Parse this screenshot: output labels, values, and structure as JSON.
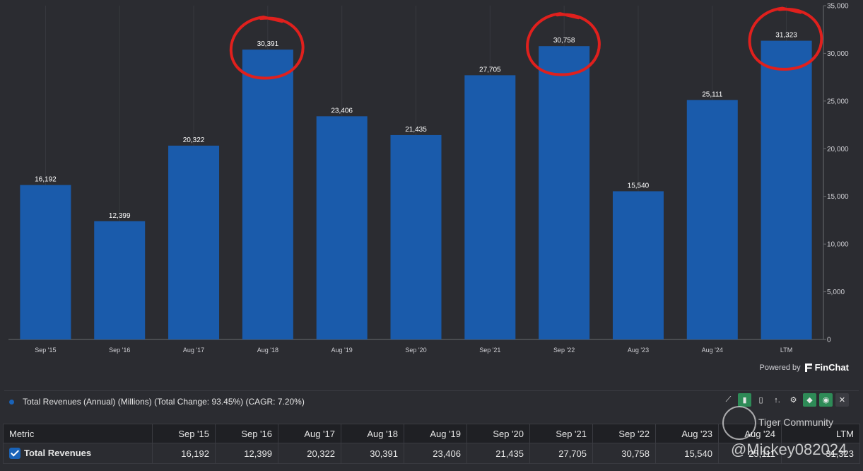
{
  "chart_data": {
    "type": "bar",
    "categories": [
      "Sep '15",
      "Sep '16",
      "Aug '17",
      "Aug '18",
      "Aug '19",
      "Sep '20",
      "Sep '21",
      "Sep '22",
      "Aug '23",
      "Aug '24",
      "LTM"
    ],
    "values": [
      16192,
      12399,
      20322,
      30391,
      23406,
      21435,
      27705,
      30758,
      15540,
      25111,
      31323
    ],
    "value_labels": [
      "16,192",
      "12,399",
      "20,322",
      "30,391",
      "23,406",
      "21,435",
      "27,705",
      "30,758",
      "15,540",
      "25,111",
      "31,323"
    ],
    "ylim": [
      0,
      35000
    ],
    "yticks": [
      0,
      5000,
      10000,
      15000,
      20000,
      25000,
      30000,
      35000
    ],
    "ytick_labels": [
      "0",
      "5,000",
      "10,000",
      "15,000",
      "20,000",
      "25,000",
      "30,000",
      "35,000"
    ],
    "y_axis_side": "right",
    "grid": "vertical",
    "bar_color": "#1a5bab",
    "highlighted_categories": [
      "Aug '18",
      "Sep '22",
      "LTM"
    ],
    "annotation_color": "#e0201d"
  },
  "powered_by": {
    "prefix": "Powered by",
    "brand": "FinChat"
  },
  "legend": {
    "label": "Total Revenues (Annual) (Millions) (Total Change: 93.45%) (CAGR: 7.20%)",
    "color": "#1a63b8"
  },
  "toolbar": [
    {
      "name": "line-chart-icon",
      "glyph": "⟋"
    },
    {
      "name": "bar-chart-icon",
      "glyph": "▮",
      "active": true
    },
    {
      "name": "grouped-bar-icon",
      "glyph": "▯"
    },
    {
      "name": "sort-icon",
      "glyph": "↑."
    },
    {
      "name": "gear-icon",
      "glyph": "⚙"
    },
    {
      "name": "tag-icon",
      "glyph": "◆",
      "active": true
    },
    {
      "name": "eye-icon",
      "glyph": "◉",
      "active": true
    },
    {
      "name": "close-icon",
      "glyph": "✕"
    }
  ],
  "table": {
    "metric_header": "Metric",
    "headers": [
      "Sep '15",
      "Sep '16",
      "Aug '17",
      "Aug '18",
      "Aug '19",
      "Sep '20",
      "Sep '21",
      "Sep '22",
      "Aug '23",
      "Aug '24",
      "LTM"
    ],
    "row_label": "Total Revenues",
    "row_values": [
      "16,192",
      "12,399",
      "20,322",
      "30,391",
      "23,406",
      "21,435",
      "27,705",
      "30,758",
      "15,540",
      "25,111",
      "31,323"
    ]
  },
  "watermark": {
    "line1": "Tiger Community",
    "line2": "@Mickey082024"
  }
}
